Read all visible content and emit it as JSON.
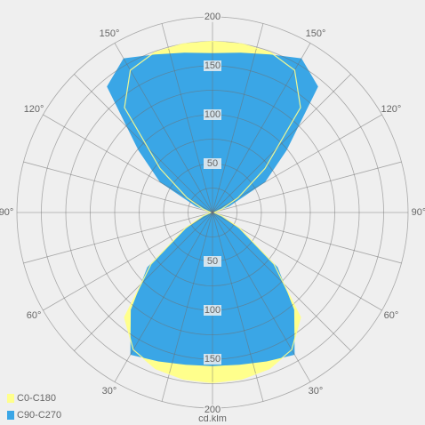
{
  "chart_data": {
    "type": "polar",
    "unit_label": "cd.klm",
    "angles": [
      0,
      10,
      20,
      30,
      40,
      50,
      60,
      70,
      80,
      90,
      100,
      110,
      120,
      130,
      140,
      150,
      160,
      170,
      180
    ],
    "series": [
      {
        "name": "C0-C180",
        "color": "#ffff8c",
        "values": [
          174,
          173,
          170,
          162,
          140,
          82,
          32,
          10,
          3,
          2,
          3,
          10,
          30,
          70,
          140,
          168,
          174,
          175,
          175
        ]
      },
      {
        "name": "C90-C270",
        "color": "#3aa6e6",
        "values": [
          157,
          158,
          162,
          168,
          130,
          87,
          30,
          10,
          4,
          2,
          3,
          18,
          62,
          99,
          168,
          182,
          172,
          166,
          163
        ]
      }
    ],
    "rlim": [
      0,
      200
    ],
    "rticks": [
      {
        "value": 25,
        "label": null
      },
      50,
      {
        "value": 75,
        "label": null
      },
      100,
      {
        "value": 125,
        "label": null
      },
      150,
      {
        "value": 175,
        "label": null
      },
      200
    ],
    "angle_ticks": [
      {
        "value": 30,
        "label": "30°"
      },
      {
        "value": 60,
        "label": "60°"
      },
      {
        "value": 90,
        "label": "90°"
      },
      {
        "value": 120,
        "label": "120°"
      },
      {
        "value": 150,
        "label": "150°"
      }
    ],
    "angle_grid_step": 15,
    "grid": true,
    "legend": "bottom-left"
  }
}
